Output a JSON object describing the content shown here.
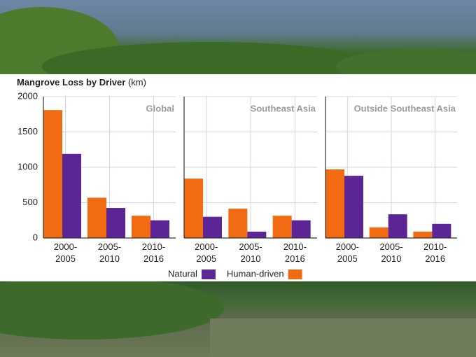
{
  "title": "Mangrove Loss by Driver",
  "unit": "(km)",
  "chart_data": [
    {
      "type": "bar",
      "title": "Global",
      "categories": [
        "2000-2005",
        "2005-2010",
        "2010-2016"
      ],
      "series": [
        {
          "name": "Human-driven",
          "color": "#f26b12",
          "values": [
            1810,
            570,
            315
          ]
        },
        {
          "name": "Natural",
          "color": "#5b2596",
          "values": [
            1190,
            425,
            250
          ]
        }
      ],
      "ylim": [
        0,
        2000
      ],
      "yticks": [
        0,
        500,
        1000,
        1500,
        2000
      ],
      "grid": true
    },
    {
      "type": "bar",
      "title": "Southeast Asia",
      "categories": [
        "2000-2005",
        "2005-2010",
        "2010-2016"
      ],
      "series": [
        {
          "name": "Human-driven",
          "color": "#f26b12",
          "values": [
            840,
            415,
            315
          ]
        },
        {
          "name": "Natural",
          "color": "#5b2596",
          "values": [
            300,
            90,
            250
          ]
        }
      ],
      "ylim": [
        0,
        2000
      ],
      "grid": true
    },
    {
      "type": "bar",
      "title": "Outside Southeast Asia",
      "categories": [
        "2000-2005",
        "2005-2010",
        "2010-2016"
      ],
      "series": [
        {
          "name": "Human-driven",
          "color": "#f26b12",
          "values": [
            970,
            150,
            90
          ]
        },
        {
          "name": "Natural",
          "color": "#5b2596",
          "values": [
            880,
            335,
            200
          ]
        }
      ],
      "ylim": [
        0,
        2000
      ],
      "grid": true
    }
  ]
}
